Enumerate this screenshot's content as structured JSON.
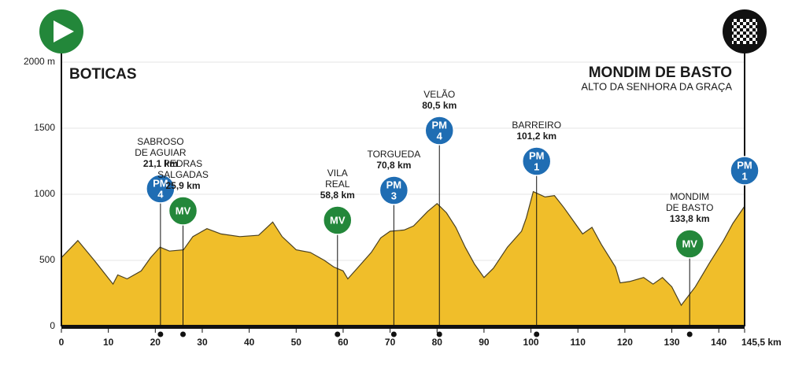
{
  "chart_data": {
    "type": "area",
    "start": "BOTICAS",
    "finish": "MONDIM DE BASTO",
    "finish_subtitle": "ALTO DA SENHORA DA GRAÇA",
    "x": [
      0,
      3.5,
      7,
      11,
      12,
      14,
      17,
      19,
      21,
      23,
      26,
      28,
      31,
      34,
      38,
      42,
      45,
      47,
      50,
      53,
      56,
      58,
      60,
      61,
      63,
      66,
      68,
      70,
      73,
      75,
      78,
      80,
      82,
      84,
      86,
      88,
      90,
      92,
      95,
      98,
      99,
      100.5,
      103,
      105,
      107,
      109,
      111,
      113,
      115,
      118,
      119,
      121,
      124,
      126,
      128,
      130,
      132,
      135,
      138,
      141,
      143,
      145.5
    ],
    "values": [
      520,
      650,
      500,
      320,
      390,
      360,
      420,
      520,
      600,
      570,
      580,
      680,
      740,
      700,
      680,
      690,
      790,
      680,
      580,
      560,
      500,
      450,
      420,
      360,
      440,
      560,
      670,
      720,
      730,
      760,
      870,
      930,
      860,
      750,
      600,
      470,
      370,
      440,
      600,
      720,
      820,
      1020,
      980,
      990,
      900,
      800,
      700,
      750,
      620,
      450,
      330,
      340,
      370,
      320,
      370,
      300,
      160,
      300,
      480,
      650,
      780,
      910
    ],
    "color": "#f0be2a",
    "xlim": [
      0,
      145.5
    ],
    "xticks": [
      0,
      10,
      20,
      30,
      40,
      50,
      60,
      70,
      80,
      90,
      100,
      110,
      120,
      130,
      140,
      {
        "value": 145.5,
        "label": "145,5 km"
      }
    ],
    "ylim": [
      0,
      2000
    ],
    "yticks": [
      0,
      500,
      1000,
      1500,
      {
        "value": 2000,
        "label": "2000 m"
      }
    ],
    "grid": true,
    "markers": [
      {
        "name": [
          "SABROSO",
          "DE AGUIAR"
        ],
        "km_label": "21,1 km",
        "km": 21.1,
        "badge": "PM",
        "category": "4",
        "color": "#1f6db3"
      },
      {
        "name": [
          "PEDRAS",
          "SALGADAS"
        ],
        "km_label": "25,9 km",
        "km": 25.9,
        "badge": "MV",
        "color": "#23873a"
      },
      {
        "name": [
          "VILA",
          "REAL"
        ],
        "km_label": "58,8 km",
        "km": 58.8,
        "badge": "MV",
        "color": "#23873a"
      },
      {
        "name": [
          "TORGUEDA"
        ],
        "km_label": "70,8 km",
        "km": 70.8,
        "badge": "PM",
        "category": "3",
        "color": "#1f6db3"
      },
      {
        "name": [
          "VELÃO"
        ],
        "km_label": "80,5 km",
        "km": 80.5,
        "badge": "PM",
        "category": "4",
        "color": "#1f6db3"
      },
      {
        "name": [
          "BARREIRO"
        ],
        "km_label": "101,2 km",
        "km": 101.2,
        "badge": "PM",
        "category": "1",
        "color": "#1f6db3"
      },
      {
        "name": [
          "MONDIM",
          "DE BASTO"
        ],
        "km_label": "133,8 km",
        "km": 133.8,
        "badge": "MV",
        "color": "#23873a"
      },
      {
        "km": 145.5,
        "badge": "PM",
        "category": "1",
        "color": "#1f6db3"
      }
    ]
  }
}
